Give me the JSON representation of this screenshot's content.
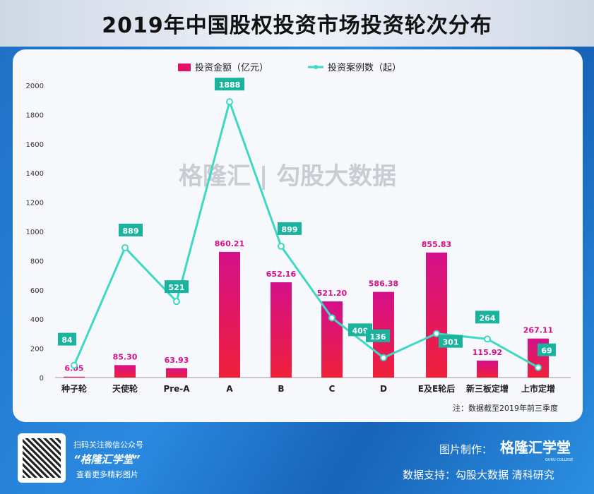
{
  "title": "2019年中国股权投资市场投资轮次分布",
  "watermark": "格隆汇 | 勾股大数据",
  "chart_data": {
    "type": "bar+line",
    "categories": [
      "种子轮",
      "天使轮",
      "Pre-A",
      "A",
      "B",
      "C",
      "D",
      "E及E轮后",
      "新三板定增",
      "上市定增"
    ],
    "series": [
      {
        "name": "投资金额（亿元）",
        "type": "bar",
        "color": "#e6106a",
        "values": [
          6.05,
          85.3,
          63.93,
          860.21,
          652.16,
          521.2,
          586.38,
          855.83,
          115.92,
          267.11
        ],
        "labels": [
          "6.05",
          "85.30",
          "63.93",
          "860.21",
          "652.16",
          "521.20",
          "586.38",
          "855.83",
          "115.92",
          "267.11"
        ]
      },
      {
        "name": "投资案例数（起）",
        "type": "line",
        "color": "#3fd8c4",
        "values": [
          84,
          889,
          521,
          1888,
          899,
          409,
          136,
          301,
          264,
          69
        ]
      }
    ],
    "ylim": [
      0,
      2000
    ],
    "yticks": [
      0,
      200,
      400,
      600,
      800,
      1000,
      1200,
      1400,
      1600,
      1800,
      2000
    ],
    "legend": "top",
    "grid": false,
    "note": "注：数据截至2019年前三季度"
  },
  "footer": {
    "qr_text1": "扫码关注微信公众号",
    "qr_text2": "“格隆汇学堂”",
    "qr_text3": "查看更多精彩图片",
    "made_by_label": "图片制作：",
    "made_by": "格隆汇学堂",
    "made_by_sub": "GURU COLLEGE",
    "source": "数据支持：勾股大数据  清科研究"
  }
}
